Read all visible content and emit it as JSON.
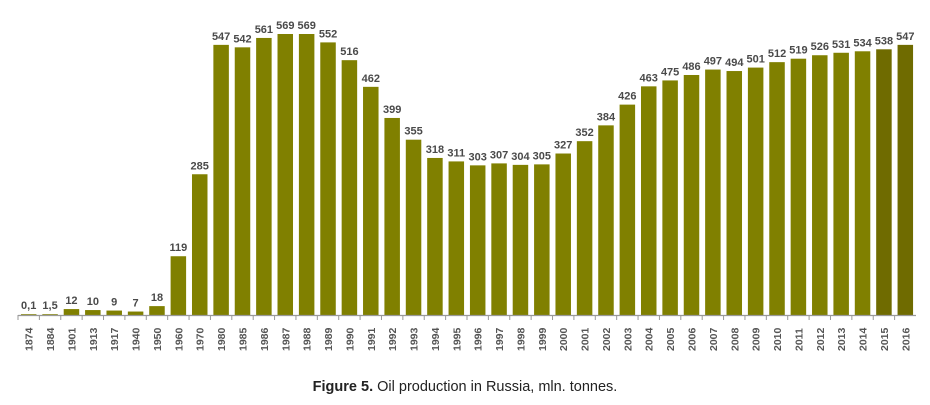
{
  "chart_data": {
    "type": "bar",
    "title": "",
    "xlabel": "",
    "ylabel": "",
    "ylim": [
      0,
      569
    ],
    "grid": false,
    "bar_color": "#808000",
    "bar_color_dark": "#6f6b00",
    "categories": [
      "1874",
      "1884",
      "1901",
      "1913",
      "1917",
      "1940",
      "1950",
      "1960",
      "1970",
      "1980",
      "1985",
      "1986",
      "1987",
      "1988",
      "1989",
      "1990",
      "1991",
      "1992",
      "1993",
      "1994",
      "1995",
      "1996",
      "1997",
      "1998",
      "1999",
      "2000",
      "2001",
      "2002",
      "2003",
      "2004",
      "2005",
      "2006",
      "2007",
      "2008",
      "2009",
      "2010",
      "2011",
      "2012",
      "2013",
      "2014",
      "2015",
      "2016"
    ],
    "values": [
      0.1,
      1.5,
      12,
      10,
      9,
      7,
      18,
      119,
      285,
      547,
      542,
      561,
      569,
      569,
      552,
      516,
      462,
      399,
      355,
      318,
      311,
      303,
      307,
      304,
      305,
      327,
      352,
      384,
      426,
      463,
      475,
      486,
      497,
      494,
      501,
      512,
      519,
      526,
      531,
      534,
      538,
      547
    ],
    "data_labels": [
      "0,1",
      "1,5",
      "12",
      "10",
      "9",
      "7",
      "18",
      "119",
      "285",
      "547",
      "542",
      "561",
      "569",
      "569",
      "552",
      "516",
      "462",
      "399",
      "355",
      "318",
      "311",
      "303",
      "307",
      "304",
      "305",
      "327",
      "352",
      "384",
      "426",
      "463",
      "475",
      "486",
      "497",
      "494",
      "501",
      "512",
      "519",
      "526",
      "531",
      "534",
      "538",
      "547"
    ]
  },
  "caption": {
    "prefix": "Figure 5.",
    "text": " Oil production in Russia, mln. tonnes."
  }
}
